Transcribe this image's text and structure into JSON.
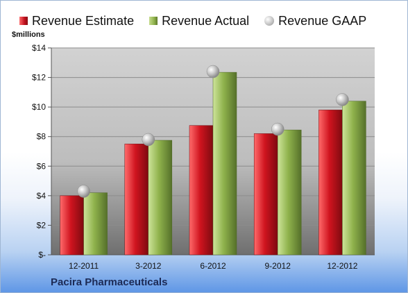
{
  "legend": {
    "estimate": "Revenue Estimate",
    "actual": "Revenue Actual",
    "gaap": "Revenue GAAP"
  },
  "company": "Pacira Pharmaceuticals",
  "chart_data": {
    "type": "bar",
    "ylabel": "$millions",
    "ylim": [
      0,
      14
    ],
    "yticks": [
      0,
      2,
      4,
      6,
      8,
      10,
      12,
      14
    ],
    "ytick_labels": [
      "$-",
      "$2",
      "$4",
      "$6",
      "$8",
      "$10",
      "$12",
      "$14"
    ],
    "categories": [
      "12-2011",
      "3-2012",
      "6-2012",
      "9-2012",
      "12-2012"
    ],
    "grid": true,
    "legend_position": "top",
    "series": [
      {
        "name": "Revenue Estimate",
        "values": [
          4.0,
          7.5,
          8.75,
          8.2,
          9.8
        ],
        "color": "#c1121f"
      },
      {
        "name": "Revenue Actual",
        "values": [
          4.2,
          7.75,
          12.35,
          8.45,
          10.4
        ],
        "color": "#8fb24c"
      },
      {
        "name": "Revenue GAAP",
        "values": [
          4.3,
          7.8,
          12.4,
          8.5,
          10.5
        ],
        "color": "#b8b8b8",
        "marker": "circle"
      }
    ]
  }
}
